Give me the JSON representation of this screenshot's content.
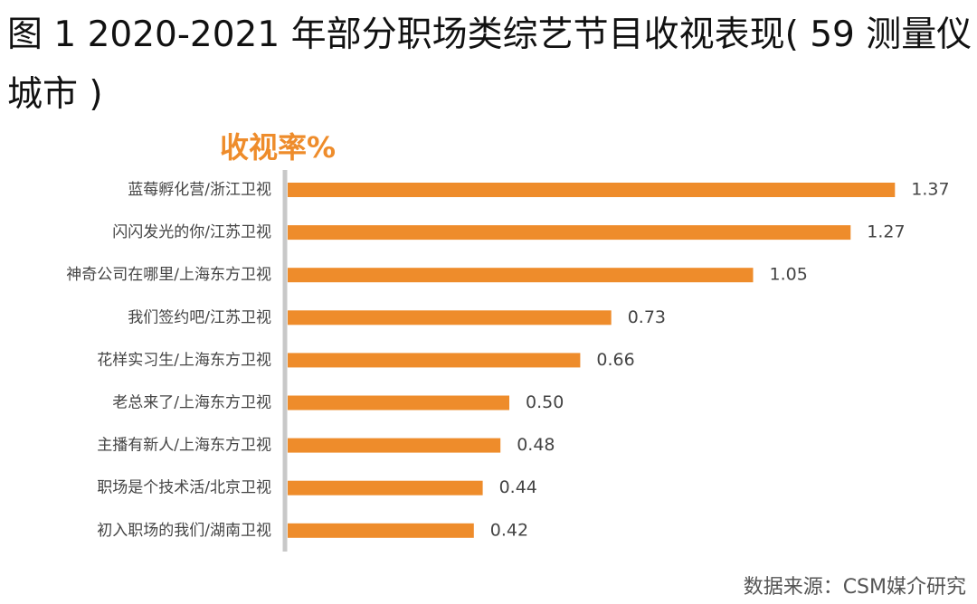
{
  "chart_data": {
    "type": "bar",
    "orientation": "horizontal",
    "title": "图 1 2020-2021 年部分职场类综艺节目收视表现( 59 测量仪城市 )",
    "axis_label": "收视率%",
    "categories": [
      "蓝莓孵化营/浙江卫视",
      "闪闪发光的你/江苏卫视",
      "神奇公司在哪里/上海东方卫视",
      "我们签约吧/江苏卫视",
      "花样实习生/上海东方卫视",
      "老总来了/上海东方卫视",
      "主播有新人/上海东方卫视",
      "职场是个技术活/北京卫视",
      "初入职场的我们/湖南卫视"
    ],
    "values": [
      1.37,
      1.27,
      1.05,
      0.73,
      0.66,
      0.5,
      0.48,
      0.44,
      0.42
    ],
    "value_labels": [
      "1.37",
      "1.27",
      "1.05",
      "0.73",
      "0.66",
      "0.50",
      "0.48",
      "0.44",
      "0.42"
    ],
    "color": "#ee8c2b",
    "source": "数据来源：CSM媒介研究"
  }
}
